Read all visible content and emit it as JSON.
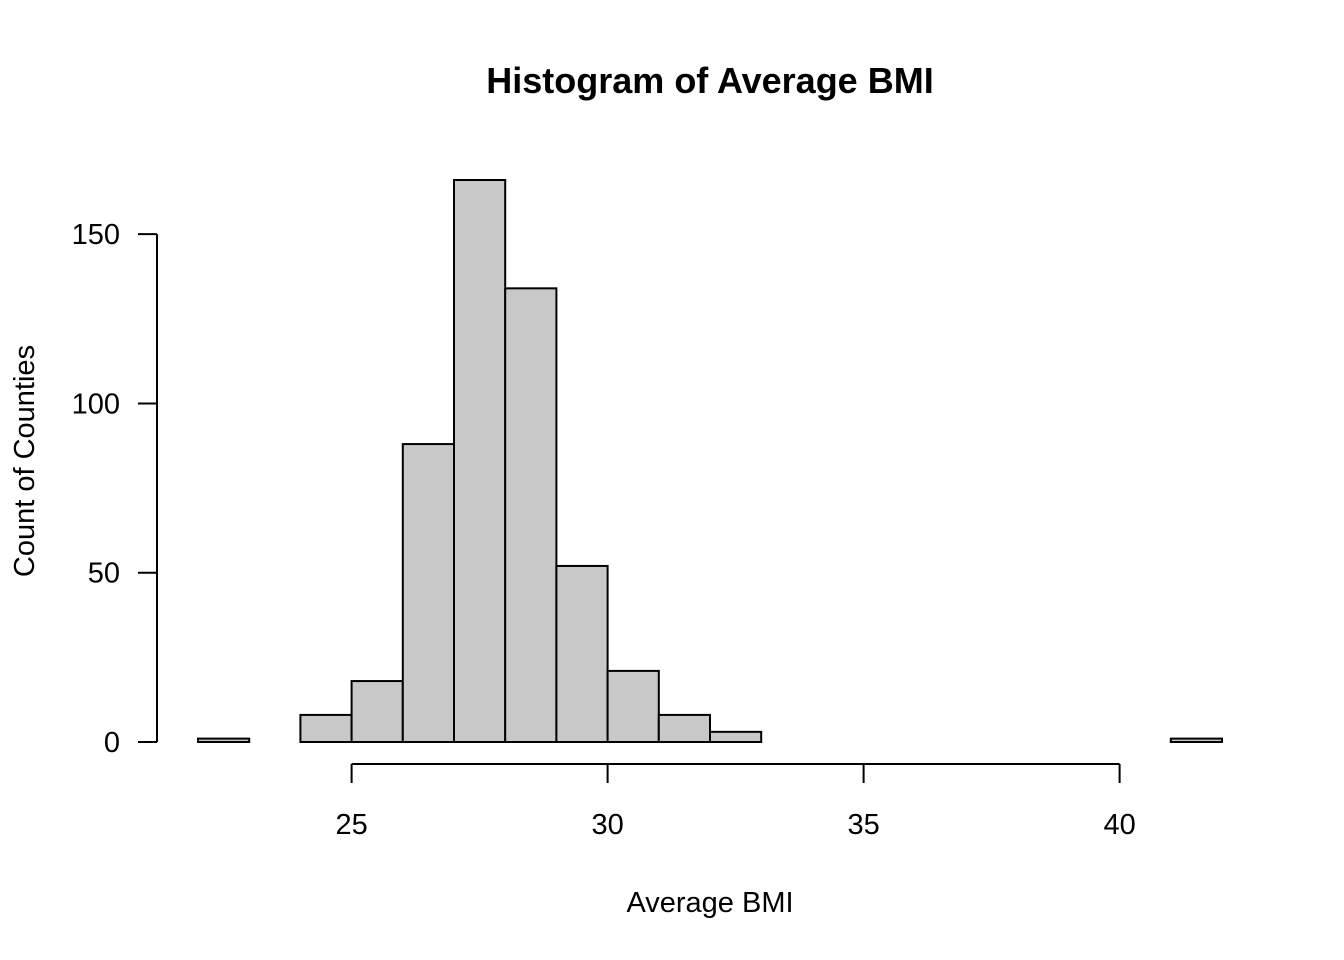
{
  "chart_data": {
    "type": "bar",
    "subtype": "histogram",
    "title": "Histogram of Average BMI",
    "xlabel": "Average BMI",
    "ylabel": "Count of Counties",
    "bin_width": 1,
    "bins": [
      {
        "start": 22,
        "end": 23,
        "count": 1
      },
      {
        "start": 23,
        "end": 24,
        "count": 0
      },
      {
        "start": 24,
        "end": 25,
        "count": 8
      },
      {
        "start": 25,
        "end": 26,
        "count": 18
      },
      {
        "start": 26,
        "end": 27,
        "count": 88
      },
      {
        "start": 27,
        "end": 28,
        "count": 166
      },
      {
        "start": 28,
        "end": 29,
        "count": 134
      },
      {
        "start": 29,
        "end": 30,
        "count": 52
      },
      {
        "start": 30,
        "end": 31,
        "count": 21
      },
      {
        "start": 31,
        "end": 32,
        "count": 8
      },
      {
        "start": 32,
        "end": 33,
        "count": 3
      },
      {
        "start": 33,
        "end": 34,
        "count": 0
      },
      {
        "start": 34,
        "end": 35,
        "count": 0
      },
      {
        "start": 35,
        "end": 36,
        "count": 0
      },
      {
        "start": 36,
        "end": 37,
        "count": 0
      },
      {
        "start": 37,
        "end": 38,
        "count": 0
      },
      {
        "start": 38,
        "end": 39,
        "count": 0
      },
      {
        "start": 39,
        "end": 40,
        "count": 0
      },
      {
        "start": 40,
        "end": 41,
        "count": 0
      },
      {
        "start": 41,
        "end": 42,
        "count": 1
      }
    ],
    "xticks": [
      25,
      30,
      35,
      40
    ],
    "yticks": [
      0,
      50,
      100,
      150
    ],
    "xlim": [
      22,
      42
    ],
    "ylim": [
      0,
      166
    ],
    "grid": false,
    "legend": "none",
    "bar_color": "#c8c8c8",
    "edge_color": "#000000"
  }
}
